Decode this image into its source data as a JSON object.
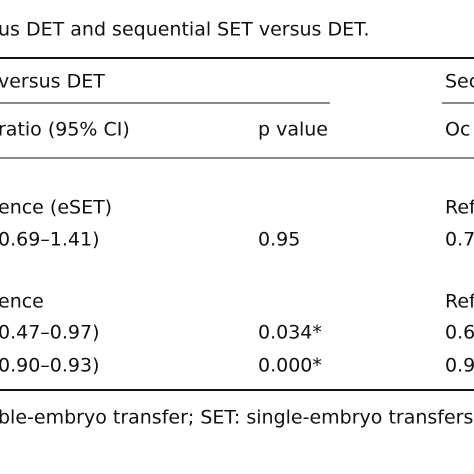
{
  "title": "us DET and sequential SET versus DET.",
  "column_groups": {
    "left": "versus DET",
    "right": "Sec"
  },
  "columns": {
    "ratio": "ratio (95% CI)",
    "p": "p value",
    "right": "Oc"
  },
  "rows": [
    {
      "label": "ence (eSET)",
      "right": "Ref"
    },
    {
      "ci": "0.69–1.41)",
      "p": "0.95",
      "right": "0.7"
    },
    {
      "label": "ence",
      "right": "Ref"
    },
    {
      "ci": "0.47–0.97)",
      "p": "0.034*",
      "right": "0.6"
    },
    {
      "ci": "0.90–0.93)",
      "p": "0.000*",
      "right": "0.9"
    }
  ],
  "footnote": "ble-embryo transfer; SET: single-embryo transfers; C"
}
